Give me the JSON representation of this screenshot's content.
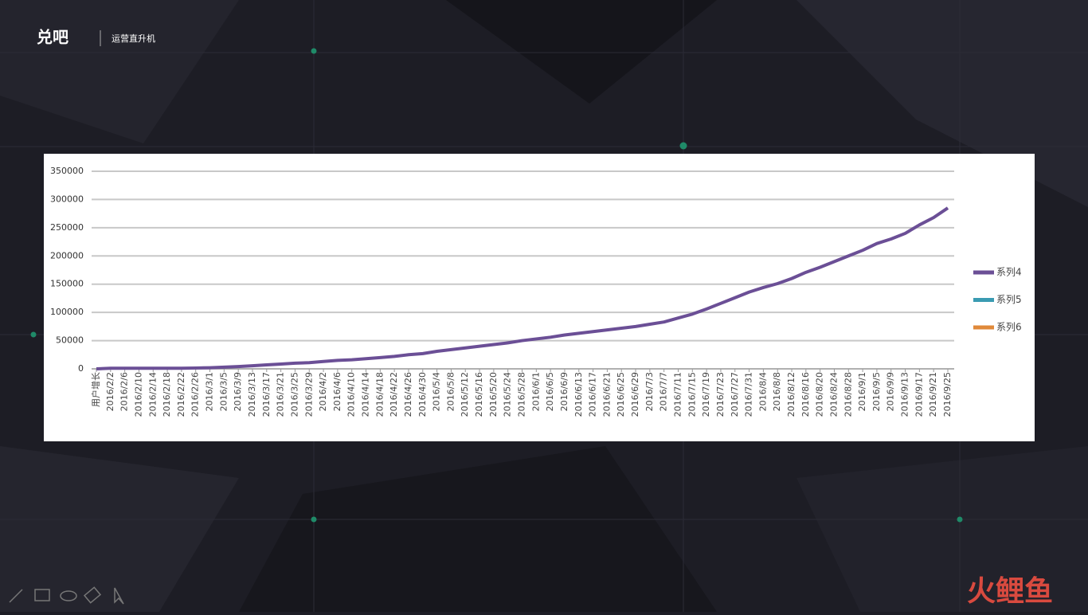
{
  "logo": {
    "brand": "兑吧",
    "product": "运营直升机"
  },
  "watermark": "火鲤鱼",
  "chart_data": {
    "type": "line",
    "categories": [
      "用户增长",
      "2016/2/2",
      "2016/2/6",
      "2016/2/10",
      "2016/2/14",
      "2016/2/18",
      "2016/2/22",
      "2016/2/26",
      "2016/3/1",
      "2016/3/5",
      "2016/3/9",
      "2016/3/13",
      "2016/3/17",
      "2016/3/21",
      "2016/3/25",
      "2016/3/29",
      "2016/4/2",
      "2016/4/6",
      "2016/4/10",
      "2016/4/14",
      "2016/4/18",
      "2016/4/22",
      "2016/4/26",
      "2016/4/30",
      "2016/5/4",
      "2016/5/8",
      "2016/5/12",
      "2016/5/16",
      "2016/5/20",
      "2016/5/24",
      "2016/5/28",
      "2016/6/1",
      "2016/6/5",
      "2016/6/9",
      "2016/6/13",
      "2016/6/17",
      "2016/6/21",
      "2016/6/25",
      "2016/6/29",
      "2016/7/3",
      "2016/7/7",
      "2016/7/11",
      "2016/7/15",
      "2016/7/19",
      "2016/7/23",
      "2016/7/27",
      "2016/7/31",
      "2016/8/4",
      "2016/8/8",
      "2016/8/12",
      "2016/8/16",
      "2016/8/20",
      "2016/8/24",
      "2016/8/28",
      "2016/9/1",
      "2016/9/5",
      "2016/9/9",
      "2016/9/13",
      "2016/9/17",
      "2016/9/21",
      "2016/9/25"
    ],
    "series": [
      {
        "name": "系列4",
        "color": "#6b4f96",
        "values": [
          0,
          1000,
          1000,
          1000,
          1000,
          1000,
          1000,
          1500,
          2000,
          3000,
          4000,
          5500,
          7000,
          8500,
          10000,
          11000,
          13000,
          15000,
          16000,
          18000,
          20000,
          22000,
          25000,
          27000,
          31000,
          34000,
          37000,
          40000,
          43000,
          46000,
          50000,
          53000,
          56000,
          60000,
          63000,
          66000,
          69000,
          72000,
          75000,
          79000,
          83000,
          90000,
          97000,
          106000,
          116000,
          126000,
          136000,
          144000,
          151000,
          160000,
          171000,
          180000,
          190000,
          200000,
          210000,
          222000,
          230000,
          240000,
          255000,
          268000,
          285000
        ]
      },
      {
        "name": "系列5",
        "color": "#3a9bb2",
        "values": [
          null,
          null,
          null,
          null,
          null,
          null,
          null,
          null,
          null,
          null,
          null,
          null,
          null,
          null,
          null,
          null,
          null,
          null,
          null,
          null,
          null,
          null,
          null,
          null,
          null,
          null,
          null,
          null,
          null,
          null,
          null,
          null,
          null,
          null,
          null,
          null,
          null,
          null,
          null,
          null,
          null,
          null,
          null,
          null,
          null,
          null,
          null,
          null,
          null,
          null,
          null,
          null,
          null,
          null,
          null,
          null,
          null,
          null,
          null,
          null,
          null
        ]
      },
      {
        "name": "系列6",
        "color": "#e0893a",
        "values": [
          null,
          null,
          null,
          null,
          null,
          null,
          null,
          null,
          null,
          null,
          null,
          null,
          null,
          null,
          null,
          null,
          null,
          null,
          null,
          null,
          null,
          null,
          null,
          null,
          null,
          null,
          null,
          null,
          null,
          null,
          null,
          null,
          null,
          null,
          null,
          null,
          null,
          null,
          null,
          null,
          null,
          null,
          null,
          null,
          null,
          null,
          null,
          null,
          null,
          null,
          null,
          null,
          null,
          null,
          null,
          null,
          null,
          null,
          null,
          null,
          null
        ]
      }
    ],
    "ylim": [
      0,
      350000
    ],
    "yticks": [
      0,
      50000,
      100000,
      150000,
      200000,
      250000,
      300000,
      350000
    ],
    "grid": true,
    "legend": "right"
  }
}
